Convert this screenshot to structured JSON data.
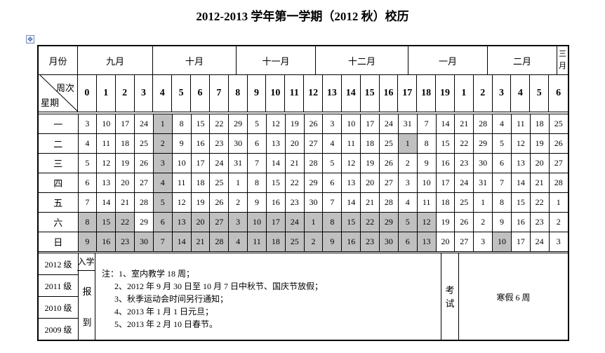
{
  "title": "2012-2013 学年第一学期（2012 秋）校历",
  "header": {
    "month_label": "月份",
    "week_label": "周次",
    "weekday_label": "星期",
    "months": [
      "九月",
      "十月",
      "十一月",
      "十二月",
      "一月",
      "二月",
      "三\n月"
    ],
    "weeks": [
      "0",
      "1",
      "2",
      "3",
      "4",
      "5",
      "6",
      "7",
      "8",
      "9",
      "10",
      "11",
      "12",
      "13",
      "14",
      "15",
      "16",
      "17",
      "18",
      "19",
      "1",
      "2",
      "3",
      "4",
      "5",
      "6"
    ]
  },
  "rows": [
    {
      "day": "一",
      "dates": [
        3,
        10,
        17,
        24,
        1,
        8,
        15,
        22,
        29,
        5,
        12,
        19,
        26,
        3,
        10,
        17,
        24,
        31,
        7,
        14,
        21,
        28,
        4,
        11,
        18,
        25
      ],
      "shaded": [
        4
      ]
    },
    {
      "day": "二",
      "dates": [
        4,
        11,
        18,
        25,
        2,
        9,
        16,
        23,
        30,
        6,
        13,
        20,
        27,
        4,
        11,
        18,
        25,
        1,
        8,
        15,
        22,
        29,
        5,
        12,
        19,
        26
      ],
      "shaded": [
        4,
        17
      ]
    },
    {
      "day": "三",
      "dates": [
        5,
        12,
        19,
        26,
        3,
        10,
        17,
        24,
        31,
        7,
        14,
        21,
        28,
        5,
        12,
        19,
        26,
        2,
        9,
        16,
        23,
        30,
        6,
        13,
        20,
        27
      ],
      "shaded": [
        4
      ]
    },
    {
      "day": "四",
      "dates": [
        6,
        13,
        20,
        27,
        4,
        11,
        18,
        25,
        1,
        8,
        15,
        22,
        29,
        6,
        13,
        20,
        27,
        3,
        10,
        17,
        24,
        31,
        7,
        14,
        21,
        28
      ],
      "shaded": [
        4
      ]
    },
    {
      "day": "五",
      "dates": [
        7,
        14,
        21,
        28,
        5,
        12,
        19,
        26,
        2,
        9,
        16,
        23,
        30,
        7,
        14,
        21,
        28,
        4,
        11,
        18,
        25,
        1,
        8,
        15,
        22,
        1
      ],
      "shaded": [
        4
      ]
    },
    {
      "day": "六",
      "dates": [
        8,
        15,
        22,
        29,
        6,
        13,
        20,
        27,
        3,
        10,
        17,
        24,
        1,
        8,
        15,
        22,
        29,
        5,
        12,
        19,
        26,
        2,
        9,
        16,
        23,
        2
      ],
      "shaded": [
        0,
        1,
        2,
        4,
        5,
        6,
        7,
        8,
        9,
        10,
        11,
        12,
        13,
        14,
        15,
        16,
        17,
        18
      ]
    },
    {
      "day": "日",
      "dates": [
        9,
        16,
        23,
        30,
        7,
        14,
        21,
        28,
        4,
        11,
        18,
        25,
        2,
        9,
        16,
        23,
        30,
        6,
        13,
        20,
        27,
        3,
        10,
        17,
        24,
        3
      ],
      "shaded": [
        0,
        1,
        2,
        3,
        4,
        5,
        6,
        7,
        8,
        9,
        10,
        11,
        12,
        13,
        14,
        15,
        16,
        17,
        18,
        22
      ]
    }
  ],
  "shade_color": "#c0c0c0",
  "bottom": {
    "grades": [
      "2012 级",
      "2011 级",
      "2010 级",
      "2009 级"
    ],
    "enroll": "入学",
    "report_1": "报",
    "report_2": "到",
    "notes": "注：1、室内教学 18 周；\n      2、2012 年 9 月 30 日至 10 月 7 日中秋节、国庆节放假；\n      3、秋季运动会时间另行通知；\n      4、2013 年 1 月 1 日元旦；\n      5、2013 年 2 月 10 日春节。",
    "exam": "考\n试",
    "winter_break": "寒假 6 周"
  }
}
